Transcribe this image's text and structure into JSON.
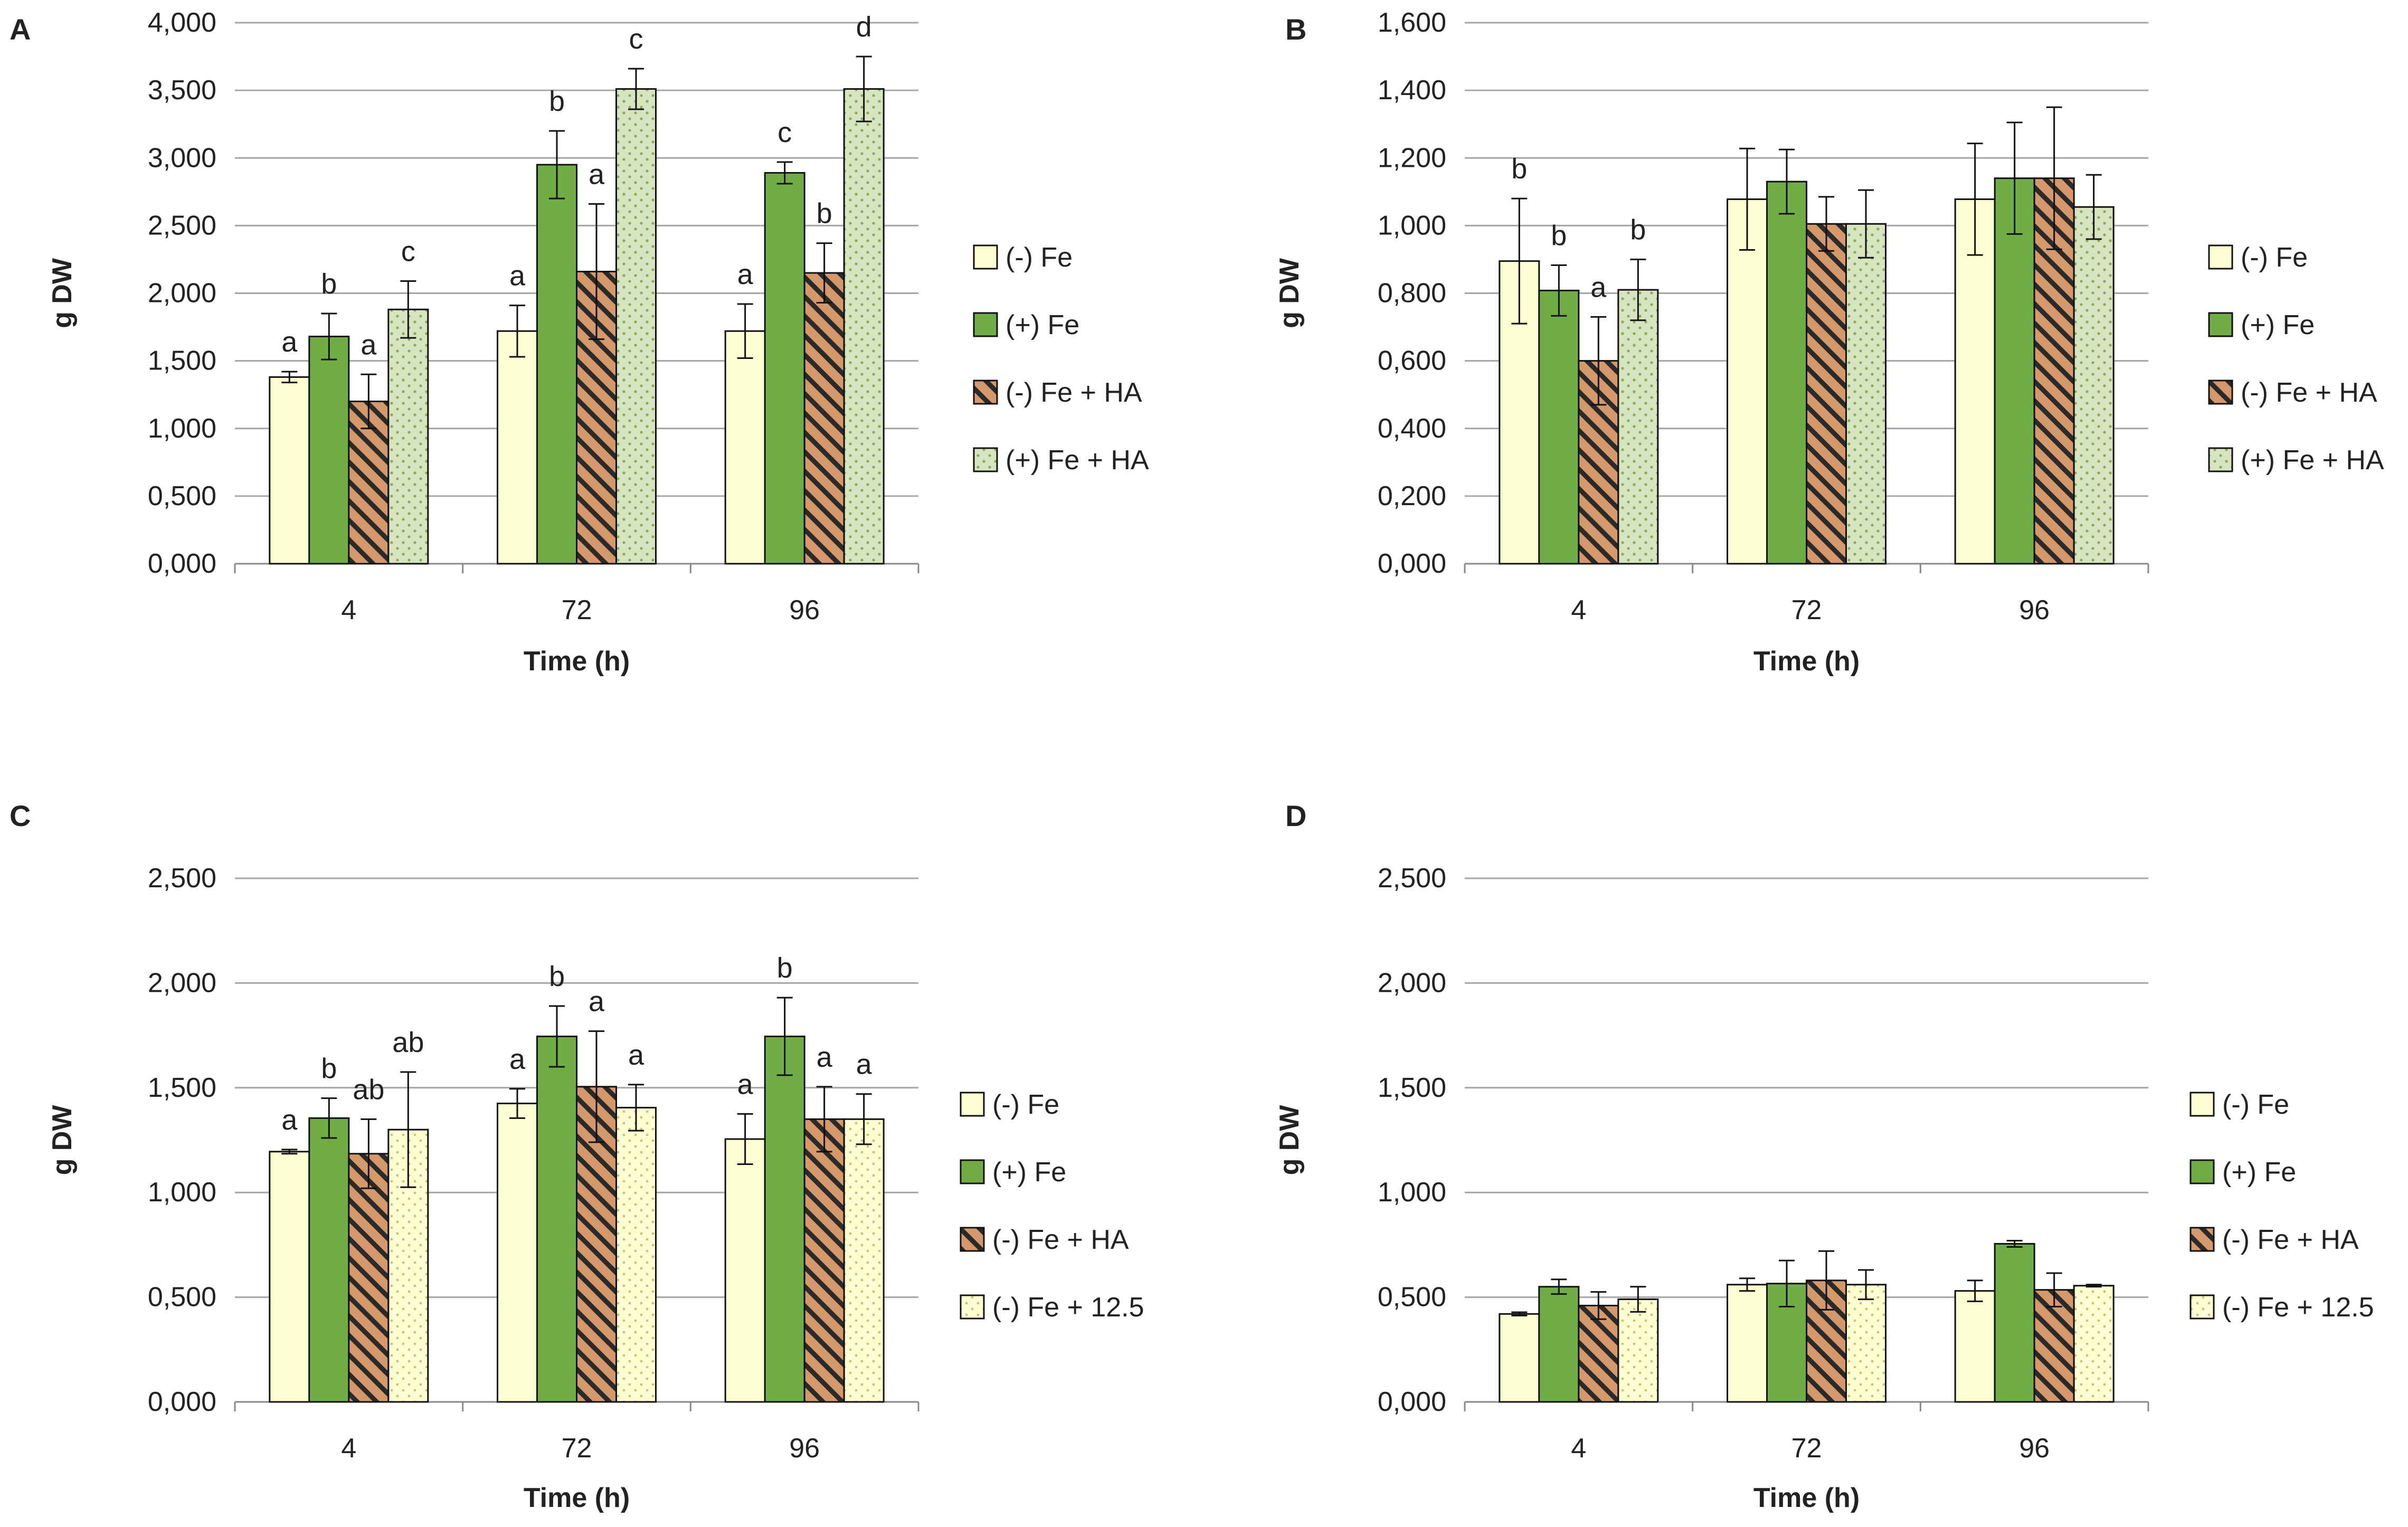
{
  "colors": {
    "minus_fe": "#fdfdd2",
    "plus_fe": "#70ad47",
    "minus_fe_ha": "#d5986a",
    "hatch_line": "#2a2a2a",
    "plus_fe_ha": "#d6e4bf",
    "dots_green": "#8aa85a",
    "minus_fe_125": "#fdfdd2",
    "dots_yellow": "#c9c07a",
    "grid": "#a6a6a6",
    "outline": "#111111"
  },
  "chart_data": [
    {
      "panel": "A",
      "type": "bar",
      "xlabel": "Time (h)",
      "ylabel": "g DW",
      "ylim": [
        0,
        4000
      ],
      "yticks": [
        "0,000",
        "0,500",
        "1,000",
        "1,500",
        "2,000",
        "2,500",
        "3,000",
        "3,500",
        "4,000"
      ],
      "categories": [
        "4",
        "72",
        "96"
      ],
      "legend_position": "right",
      "series": [
        {
          "name": "(-) Fe",
          "pattern": "minus_fe",
          "values": [
            1380,
            1720,
            1720
          ],
          "errors": [
            40,
            190,
            200
          ],
          "letters": [
            "a",
            "a",
            "a"
          ]
        },
        {
          "name": "(+) Fe",
          "pattern": "plus_fe",
          "values": [
            1680,
            2950,
            2890
          ],
          "errors": [
            170,
            250,
            80
          ],
          "letters": [
            "b",
            "b",
            "c"
          ]
        },
        {
          "name": "(-) Fe + HA",
          "pattern": "minus_fe_ha",
          "values": [
            1200,
            2160,
            2150
          ],
          "errors": [
            200,
            500,
            220
          ],
          "letters": [
            "a",
            "a",
            "b"
          ]
        },
        {
          "name": "(+) Fe + HA",
          "pattern": "plus_fe_ha",
          "values": [
            1880,
            3510,
            3510
          ],
          "errors": [
            210,
            150,
            240
          ],
          "letters": [
            "c",
            "c",
            "d"
          ]
        }
      ]
    },
    {
      "panel": "B",
      "type": "bar",
      "xlabel": "Time (h)",
      "ylabel": "g DW",
      "ylim": [
        0,
        1600
      ],
      "yticks": [
        "0,000",
        "0,200",
        "0,400",
        "0,600",
        "0,800",
        "1,000",
        "1,200",
        "1,400",
        "1,600"
      ],
      "categories": [
        "4",
        "72",
        "96"
      ],
      "legend_position": "right",
      "series": [
        {
          "name": "(-) Fe",
          "pattern": "minus_fe",
          "values": [
            895,
            1078,
            1078
          ],
          "errors": [
            185,
            150,
            165
          ],
          "letters": [
            "b",
            "",
            ""
          ]
        },
        {
          "name": "(+) Fe",
          "pattern": "plus_fe",
          "values": [
            808,
            1130,
            1140
          ],
          "errors": [
            75,
            95,
            165
          ],
          "letters": [
            "b",
            "",
            ""
          ]
        },
        {
          "name": "(-) Fe + HA",
          "pattern": "minus_fe_ha",
          "values": [
            600,
            1005,
            1140
          ],
          "errors": [
            130,
            80,
            210
          ],
          "letters": [
            "a",
            "",
            ""
          ]
        },
        {
          "name": "(+) Fe + HA",
          "pattern": "plus_fe_ha",
          "values": [
            810,
            1005,
            1055
          ],
          "errors": [
            90,
            100,
            95
          ],
          "letters": [
            "b",
            "",
            ""
          ]
        }
      ]
    },
    {
      "panel": "C",
      "type": "bar",
      "xlabel": "Time (h)",
      "ylabel": "g DW",
      "ylim": [
        0,
        2500
      ],
      "yticks": [
        "0,000",
        "0,500",
        "1,000",
        "1,500",
        "2,000",
        "2,500"
      ],
      "categories": [
        "4",
        "72",
        "96"
      ],
      "legend_position": "right",
      "series": [
        {
          "name": "(-) Fe",
          "pattern": "minus_fe",
          "values": [
            1195,
            1425,
            1255
          ],
          "errors": [
            10,
            70,
            120
          ],
          "letters": [
            "a",
            "a",
            "a"
          ]
        },
        {
          "name": "(+) Fe",
          "pattern": "plus_fe",
          "values": [
            1355,
            1745,
            1745
          ],
          "errors": [
            95,
            145,
            185
          ],
          "letters": [
            "b",
            "b",
            "b"
          ]
        },
        {
          "name": "(-) Fe + HA",
          "pattern": "minus_fe_ha",
          "values": [
            1185,
            1505,
            1350
          ],
          "errors": [
            165,
            265,
            155
          ],
          "letters": [
            "ab",
            "a",
            "a"
          ]
        },
        {
          "name": "(-) Fe + 12.5",
          "pattern": "minus_fe_125",
          "values": [
            1300,
            1405,
            1350
          ],
          "errors": [
            275,
            110,
            120
          ],
          "letters": [
            "ab",
            "a",
            "a"
          ]
        }
      ]
    },
    {
      "panel": "D",
      "type": "bar",
      "xlabel": "Time (h)",
      "ylabel": "g DW",
      "ylim": [
        0,
        2500
      ],
      "yticks": [
        "0,000",
        "0,500",
        "1,000",
        "1,500",
        "2,000",
        "2,500"
      ],
      "categories": [
        "4",
        "72",
        "96"
      ],
      "legend_position": "right",
      "series": [
        {
          "name": "(-) Fe",
          "pattern": "minus_fe",
          "values": [
            420,
            560,
            530
          ],
          "errors": [
            8,
            30,
            50
          ],
          "letters": [
            "",
            "",
            ""
          ]
        },
        {
          "name": "(+) Fe",
          "pattern": "plus_fe",
          "values": [
            550,
            565,
            755
          ],
          "errors": [
            35,
            110,
            15
          ],
          "letters": [
            "",
            "",
            ""
          ]
        },
        {
          "name": "(-) Fe + HA",
          "pattern": "minus_fe_ha",
          "values": [
            460,
            580,
            535
          ],
          "errors": [
            65,
            140,
            80
          ],
          "letters": [
            "",
            "",
            ""
          ]
        },
        {
          "name": "(-) Fe + 12.5",
          "pattern": "minus_fe_125",
          "values": [
            490,
            560,
            555
          ],
          "errors": [
            60,
            70,
            5
          ],
          "letters": [
            "",
            "",
            ""
          ]
        }
      ]
    }
  ]
}
